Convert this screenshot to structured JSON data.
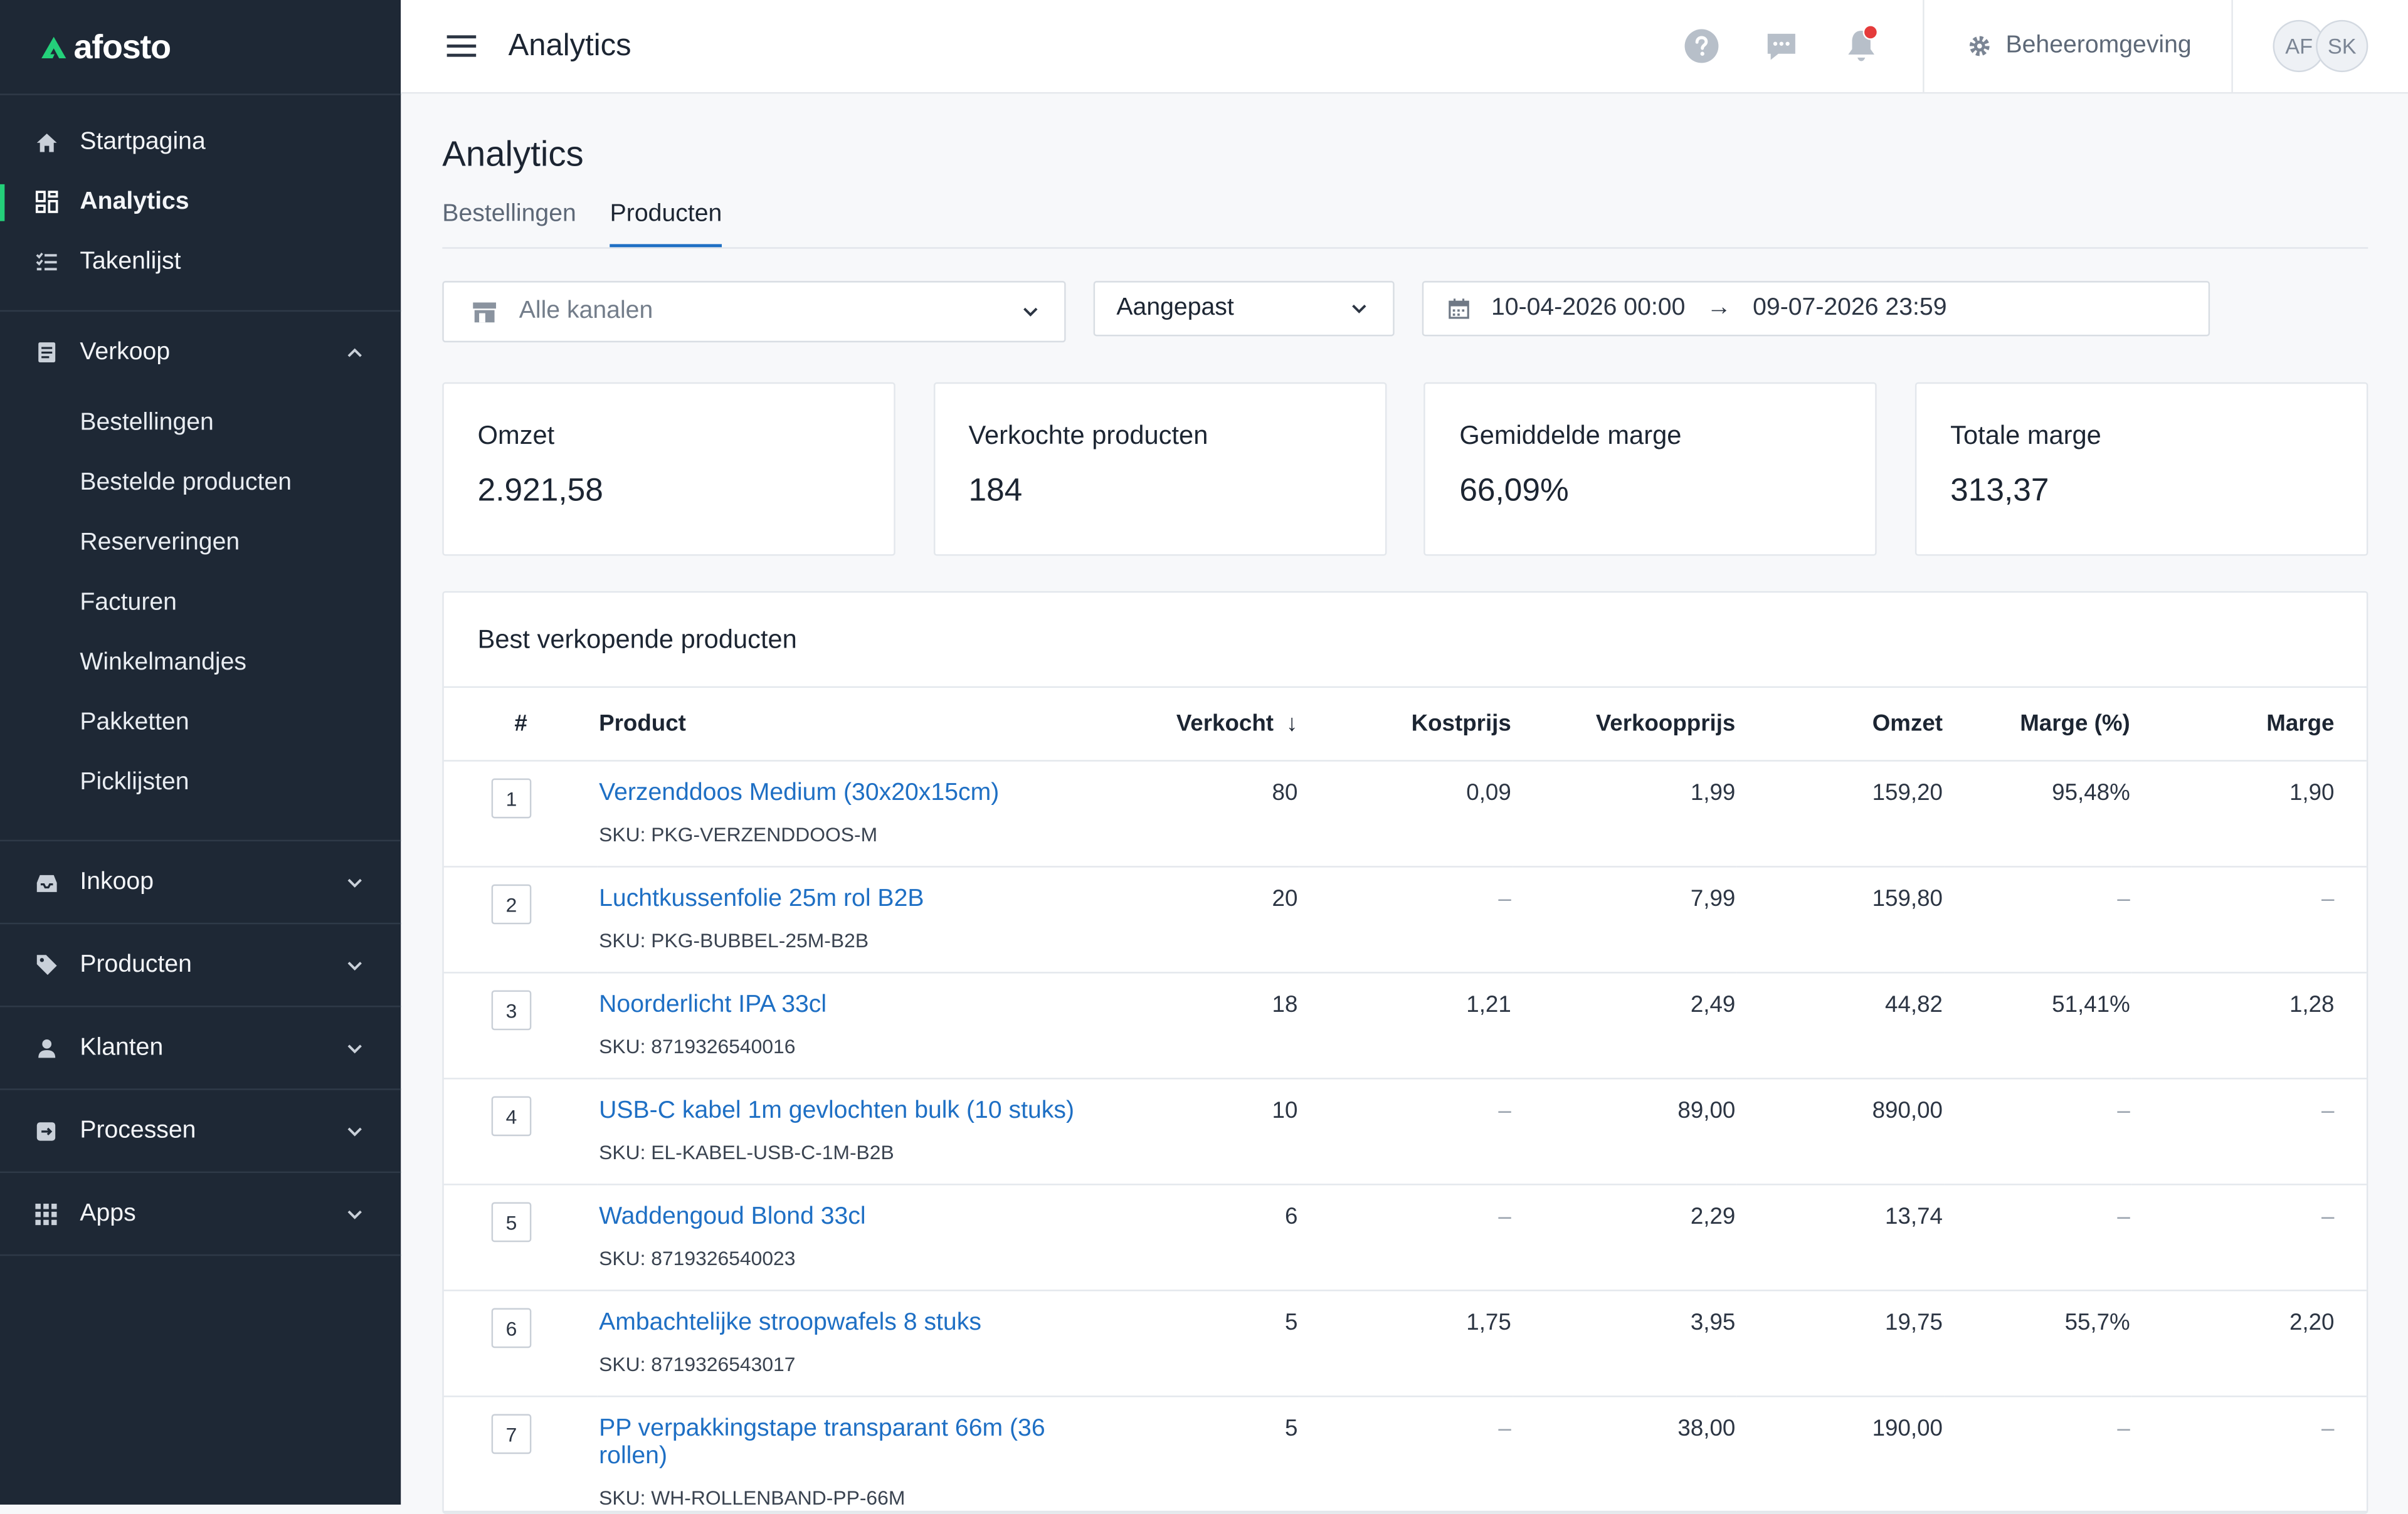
{
  "app": {
    "logo_text": "afosto"
  },
  "sidebar": {
    "top_items": [
      {
        "label": "Startpagina",
        "icon": "home-icon"
      },
      {
        "label": "Analytics",
        "icon": "analytics-icon",
        "active": true
      },
      {
        "label": "Takenlijst",
        "icon": "tasklist-icon"
      }
    ],
    "verkoop": {
      "label": "Verkoop",
      "icon": "receipt-icon",
      "expanded": true,
      "items": [
        "Bestellingen",
        "Bestelde producten",
        "Reserveringen",
        "Facturen",
        "Winkelmandjes",
        "Pakketten",
        "Picklijsten"
      ]
    },
    "sections": [
      {
        "label": "Inkoop",
        "icon": "inbox-icon"
      },
      {
        "label": "Producten",
        "icon": "tag-icon"
      },
      {
        "label": "Klanten",
        "icon": "user-icon"
      },
      {
        "label": "Processen",
        "icon": "process-icon"
      },
      {
        "label": "Apps",
        "icon": "apps-grid-icon"
      }
    ]
  },
  "header": {
    "title": "Analytics",
    "environment_label": "Beheeromgeving",
    "avatars": [
      "AF",
      "SK"
    ],
    "has_notification": true
  },
  "main": {
    "title": "Analytics",
    "tabs": [
      {
        "label": "Bestellingen",
        "active": false
      },
      {
        "label": "Producten",
        "active": true
      }
    ],
    "filters": {
      "channel_placeholder": "Alle kanalen",
      "preset_value": "Aangepast",
      "date_from": "10-04-2026 00:00",
      "date_to": "09-07-2026 23:59"
    },
    "stats": [
      {
        "label": "Omzet",
        "value": "2.921,58"
      },
      {
        "label": "Verkochte producten",
        "value": "184"
      },
      {
        "label": "Gemiddelde marge",
        "value": "66,09%"
      },
      {
        "label": "Totale marge",
        "value": "313,37"
      }
    ],
    "table": {
      "title": "Best verkopende producten",
      "columns": [
        "#",
        "Product",
        "Verkocht",
        "Kostprijs",
        "Verkoopprijs",
        "Omzet",
        "Marge (%)",
        "Marge"
      ],
      "sort_column": "Verkocht",
      "sort_direction": "desc",
      "rows": [
        {
          "rank": "1",
          "name": "Verzenddoos Medium (30x20x15cm)",
          "sku": "SKU: PKG-VERZENDDOOS-M",
          "sold": "80",
          "cost": "0,09",
          "price": "1,99",
          "revenue": "159,20",
          "margin_pct": "95,48%",
          "margin": "1,90"
        },
        {
          "rank": "2",
          "name": "Luchtkussenfolie 25m rol B2B",
          "sku": "SKU: PKG-BUBBEL-25M-B2B",
          "sold": "20",
          "cost": "–",
          "price": "7,99",
          "revenue": "159,80",
          "margin_pct": "–",
          "margin": "–"
        },
        {
          "rank": "3",
          "name": "Noorderlicht IPA 33cl",
          "sku": "SKU: 8719326540016",
          "sold": "18",
          "cost": "1,21",
          "price": "2,49",
          "revenue": "44,82",
          "margin_pct": "51,41%",
          "margin": "1,28"
        },
        {
          "rank": "4",
          "name": "USB-C kabel 1m gevlochten bulk (10 stuks)",
          "sku": "SKU: EL-KABEL-USB-C-1M-B2B",
          "sold": "10",
          "cost": "–",
          "price": "89,00",
          "revenue": "890,00",
          "margin_pct": "–",
          "margin": "–"
        },
        {
          "rank": "5",
          "name": "Waddengoud Blond 33cl",
          "sku": "SKU: 8719326540023",
          "sold": "6",
          "cost": "–",
          "price": "2,29",
          "revenue": "13,74",
          "margin_pct": "–",
          "margin": "–"
        },
        {
          "rank": "6",
          "name": "Ambachtelijke stroopwafels 8 stuks",
          "sku": "SKU: 8719326543017",
          "sold": "5",
          "cost": "1,75",
          "price": "3,95",
          "revenue": "19,75",
          "margin_pct": "55,7%",
          "margin": "2,20"
        },
        {
          "rank": "7",
          "name": "PP verpakkingstape transparant 66m (36 rollen)",
          "sku": "SKU: WH-ROLLENBAND-PP-66M",
          "sold": "5",
          "cost": "–",
          "price": "38,00",
          "revenue": "190,00",
          "margin_pct": "–",
          "margin": "–"
        }
      ]
    }
  },
  "colors": {
    "sidebar_bg": "#1e2835",
    "accent_green": "#24d07a",
    "link_blue": "#1e6fc4",
    "notification_red": "#e53b3b"
  }
}
